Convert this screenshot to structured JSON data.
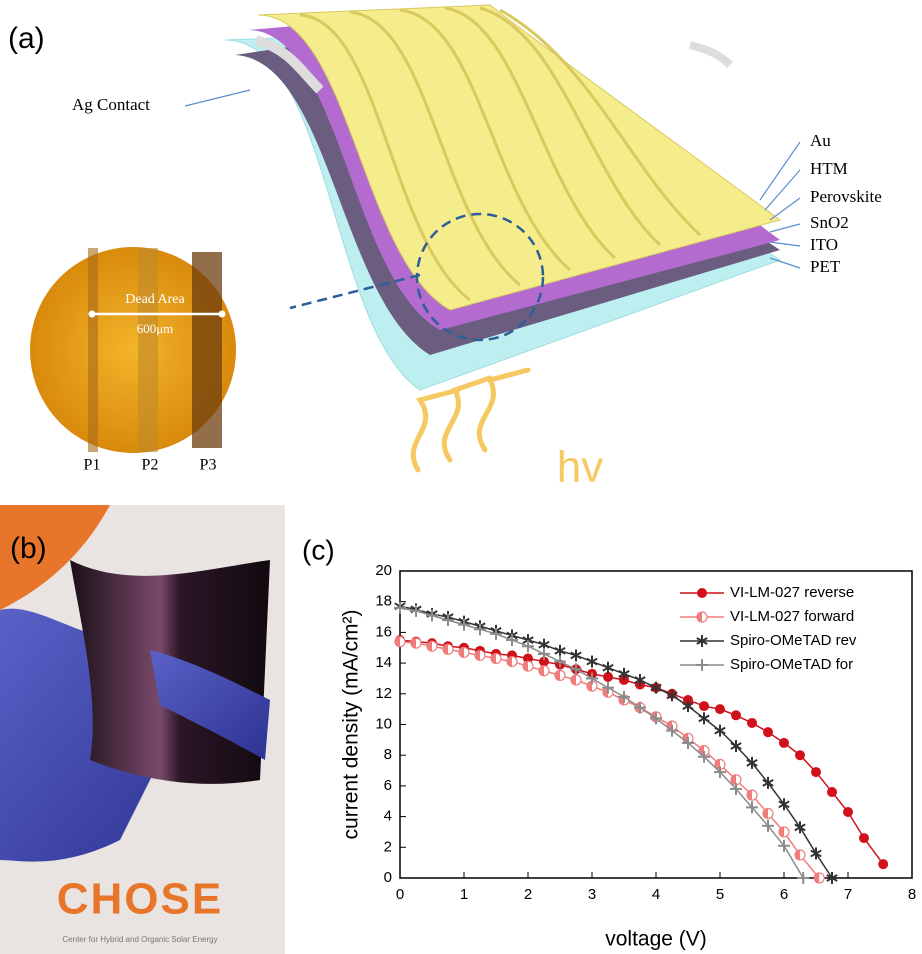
{
  "panel_a": {
    "label": "(a)",
    "layers": [
      "Au",
      "HTM",
      "Perovskite",
      "SnO2",
      "ITO",
      "PET"
    ],
    "contact": "Ag Contact",
    "dead_area": "Dead Area",
    "width": "600μm",
    "scribes": [
      "P1",
      "P2",
      "P3"
    ],
    "light": "hv"
  },
  "panel_b": {
    "label": "(b)",
    "logo": "CHOSE",
    "logo_caption": "Center for Hybrid and Organic Solar Energy"
  },
  "chart_data": {
    "type": "line",
    "panel_label": "(c)",
    "x_label": "voltage (V)",
    "y_label": "current density (mA/cm²)",
    "xlim": [
      0,
      8
    ],
    "xticks": [
      0,
      1,
      2,
      3,
      4,
      5,
      6,
      7,
      8
    ],
    "ylim": [
      0,
      20
    ],
    "yticks": [
      0,
      2,
      4,
      6,
      8,
      10,
      12,
      14,
      16,
      18,
      20
    ],
    "series": [
      {
        "name": "VI-LM-027 reverse",
        "color": "#d0101a",
        "marker": "filled-circle",
        "x": [
          0,
          0.25,
          0.5,
          0.75,
          1,
          1.25,
          1.5,
          1.75,
          2,
          2.25,
          2.5,
          2.75,
          3,
          3.25,
          3.5,
          3.75,
          4,
          4.25,
          4.5,
          4.75,
          5,
          5.25,
          5.5,
          5.75,
          6,
          6.25,
          6.5,
          6.75,
          7,
          7.25,
          7.55
        ],
        "values": [
          15.5,
          15.4,
          15.3,
          15.1,
          15.0,
          14.8,
          14.6,
          14.5,
          14.3,
          14.1,
          13.9,
          13.6,
          13.3,
          13.1,
          12.9,
          12.6,
          12.4,
          12.0,
          11.6,
          11.2,
          11.0,
          10.6,
          10.1,
          9.5,
          8.8,
          8.0,
          6.9,
          5.6,
          4.3,
          2.6,
          0.9
        ]
      },
      {
        "name": "VI-LM-027 forward",
        "color": "#f07c7c",
        "marker": "half-circle",
        "x": [
          0,
          0.25,
          0.5,
          0.75,
          1,
          1.25,
          1.5,
          1.75,
          2,
          2.25,
          2.5,
          2.75,
          3,
          3.25,
          3.5,
          3.75,
          4,
          4.25,
          4.5,
          4.75,
          5,
          5.25,
          5.5,
          5.75,
          6,
          6.25,
          6.55
        ],
        "values": [
          15.4,
          15.3,
          15.1,
          14.9,
          14.7,
          14.5,
          14.3,
          14.1,
          13.8,
          13.5,
          13.2,
          12.9,
          12.5,
          12.1,
          11.6,
          11.1,
          10.5,
          9.9,
          9.1,
          8.3,
          7.4,
          6.4,
          5.4,
          4.2,
          3.0,
          1.5,
          0
        ]
      },
      {
        "name": "Spiro-OMeTAD rev",
        "color": "#333333",
        "marker": "asterisk",
        "x": [
          0,
          0.25,
          0.5,
          0.75,
          1,
          1.25,
          1.5,
          1.75,
          2,
          2.25,
          2.5,
          2.75,
          3,
          3.25,
          3.5,
          3.75,
          4,
          4.25,
          4.5,
          4.75,
          5,
          5.25,
          5.5,
          5.75,
          6,
          6.25,
          6.5,
          6.75
        ],
        "values": [
          17.7,
          17.5,
          17.2,
          17.0,
          16.7,
          16.4,
          16.1,
          15.8,
          15.5,
          15.2,
          14.8,
          14.5,
          14.1,
          13.7,
          13.3,
          12.9,
          12.4,
          11.9,
          11.2,
          10.4,
          9.6,
          8.6,
          7.5,
          6.2,
          4.8,
          3.3,
          1.6,
          0
        ]
      },
      {
        "name": "Spiro-OMeTAD for",
        "color": "#8c8c8c",
        "marker": "plus",
        "x": [
          0,
          0.25,
          0.5,
          0.75,
          1,
          1.25,
          1.5,
          1.75,
          2,
          2.25,
          2.5,
          2.75,
          3,
          3.25,
          3.5,
          3.75,
          4,
          4.25,
          4.5,
          4.75,
          5,
          5.25,
          5.5,
          5.75,
          6,
          6.3
        ],
        "values": [
          17.6,
          17.4,
          17.1,
          16.8,
          16.5,
          16.2,
          15.9,
          15.5,
          15.1,
          14.6,
          14.1,
          13.6,
          13.0,
          12.4,
          11.8,
          11.1,
          10.4,
          9.6,
          8.8,
          7.9,
          6.9,
          5.8,
          4.6,
          3.4,
          2.1,
          0
        ]
      }
    ]
  }
}
